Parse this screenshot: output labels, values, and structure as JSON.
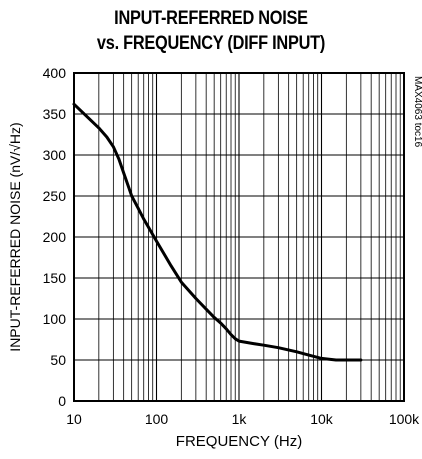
{
  "chart_data": {
    "type": "line",
    "title_line1": "INPUT-REFERRED NOISE",
    "title_line2": "vs. FREQUENCY (DIFF INPUT)",
    "xlabel": "FREQUENCY (Hz)",
    "ylabel": "INPUT-REFERRED NOISE (nV/√Hz)",
    "code": "MAX4063 toc16",
    "x_scale": "log",
    "xlim": [
      10,
      100000
    ],
    "ylim": [
      0,
      400
    ],
    "x_ticks": [
      10,
      100,
      1000,
      10000,
      100000
    ],
    "x_tick_labels": [
      "10",
      "100",
      "1k",
      "10k",
      "100k"
    ],
    "y_ticks": [
      0,
      50,
      100,
      150,
      200,
      250,
      300,
      350,
      400
    ],
    "y_tick_labels": [
      "0",
      "50",
      "100",
      "150",
      "200",
      "250",
      "300",
      "350",
      "400"
    ],
    "grid": true,
    "series": [
      {
        "x": [
          10,
          15,
          20,
          25,
          30,
          35,
          40,
          50,
          60,
          70,
          80,
          100,
          150,
          200,
          300,
          400,
          500,
          600,
          700,
          800,
          900,
          1000,
          1500,
          2000,
          3000,
          5000,
          7000,
          10000,
          15000,
          20000,
          30000
        ],
        "y": [
          362,
          345,
          333,
          322,
          310,
          295,
          278,
          250,
          235,
          222,
          212,
          195,
          165,
          145,
          125,
          112,
          102,
          95,
          88,
          81,
          76,
          73,
          70,
          68,
          65,
          60,
          56,
          52,
          50,
          50,
          50
        ]
      }
    ]
  }
}
